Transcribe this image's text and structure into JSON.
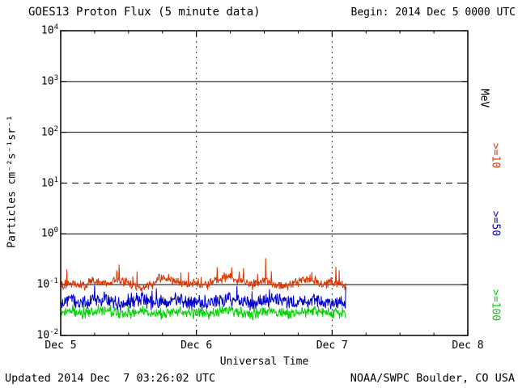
{
  "header": {
    "title": "GOES13 Proton Flux (5 minute data)",
    "begin_label": "Begin: 2014 Dec 5 0000 UTC"
  },
  "footer": {
    "updated": "Updated 2014 Dec  7 03:26:02 UTC",
    "credit": "NOAA/SWPC Boulder, CO USA"
  },
  "chart_data": {
    "type": "line",
    "title": "GOES13 Proton Flux (5 minute data)",
    "xlabel": "Universal Time",
    "ylabel": "Particles cm⁻²s⁻¹sr⁻¹",
    "right_axis_label": "MeV",
    "x_ticks": [
      "Dec 5",
      "Dec 6",
      "Dec 7",
      "Dec 8"
    ],
    "x_tick_hours": [
      0,
      24,
      48,
      72
    ],
    "x_minor_tick_hours": 6,
    "x_range_hours": [
      0,
      72
    ],
    "ylog_min": -2,
    "ylog_max": 4,
    "y_tick_exponents": [
      4,
      3,
      2,
      1,
      0,
      -1,
      -2
    ],
    "solid_gridline_exponents": [
      3,
      2,
      0,
      -1
    ],
    "dashed_gridline_exponents": [
      1
    ],
    "vertical_dotted_hours": [
      24,
      48
    ],
    "background": "#ffffff",
    "axis_color": "#000000",
    "grid": "horizontal lines at each decade, dashed at 10^1, dotted verticals at day boundaries",
    "legend_position": "right-axis rotated labels",
    "data_start_hour": 0,
    "data_end_hour": 50.5,
    "sample_interval_minutes": 5,
    "anchor_interval_hours": 2,
    "series": [
      {
        "name": ">=10",
        "unit": "MeV",
        "color": "#e03400",
        "seed": 101,
        "noise_log_amp": 0.12,
        "spike_prob": 0.05,
        "spike_log_amp": 0.38,
        "min_value": 0.055,
        "anchor_values": [
          0.1,
          0.11,
          0.095,
          0.12,
          0.1,
          0.13,
          0.11,
          0.09,
          0.1,
          0.14,
          0.12,
          0.1,
          0.11,
          0.095,
          0.13,
          0.15,
          0.11,
          0.1,
          0.12,
          0.1,
          0.09,
          0.11,
          0.13,
          0.1,
          0.11,
          0.1
        ]
      },
      {
        "name": ">=50",
        "unit": "MeV",
        "color": "#0000cc",
        "seed": 202,
        "noise_log_amp": 0.17,
        "spike_prob": 0.03,
        "spike_log_amp": 0.3,
        "min_value": 0.022,
        "anchor_values": [
          0.045,
          0.05,
          0.04,
          0.048,
          0.055,
          0.042,
          0.04,
          0.05,
          0.046,
          0.043,
          0.052,
          0.048,
          0.044,
          0.04,
          0.05,
          0.055,
          0.046,
          0.042,
          0.048,
          0.05,
          0.044,
          0.046,
          0.05,
          0.048,
          0.045,
          0.046
        ]
      },
      {
        "name": ">=100",
        "unit": "MeV",
        "color": "#00d400",
        "seed": 303,
        "noise_log_amp": 0.13,
        "spike_prob": 0.02,
        "spike_log_amp": 0.2,
        "min_value": 0.014,
        "anchor_values": [
          0.028,
          0.03,
          0.026,
          0.029,
          0.032,
          0.027,
          0.025,
          0.03,
          0.028,
          0.026,
          0.031,
          0.029,
          0.027,
          0.026,
          0.03,
          0.032,
          0.028,
          0.027,
          0.029,
          0.03,
          0.027,
          0.028,
          0.03,
          0.029,
          0.028,
          0.028
        ]
      }
    ]
  }
}
